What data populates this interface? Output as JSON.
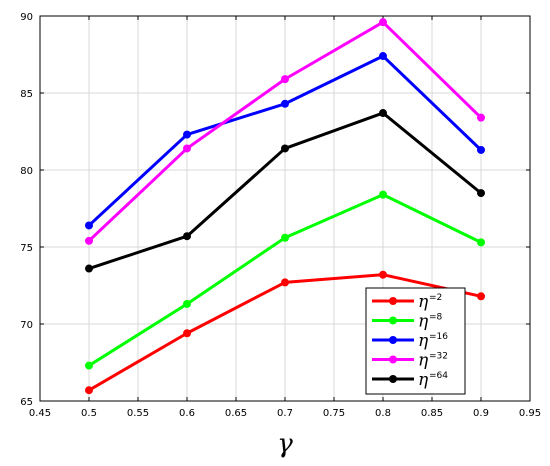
{
  "chart_data": {
    "type": "line",
    "title": "",
    "xlabel": "γ",
    "ylabel": "",
    "xlim": [
      0.45,
      0.95
    ],
    "ylim": [
      65,
      90
    ],
    "xticks": [
      "0.45",
      "0.5",
      "0.55",
      "0.6",
      "0.65",
      "0.7",
      "0.75",
      "0.8",
      "0.85",
      "0.9",
      "0.95"
    ],
    "yticks": [
      "65",
      "70",
      "75",
      "80",
      "85",
      "90"
    ],
    "grid": true,
    "legend_position": "bottom-right",
    "x": [
      0.5,
      0.6,
      0.7,
      0.8,
      0.9
    ],
    "series": [
      {
        "name_symbol": "η",
        "name_sub": "=2",
        "color": "#ff0000",
        "values": [
          65.7,
          69.4,
          72.7,
          73.2,
          71.8
        ]
      },
      {
        "name_symbol": "η",
        "name_sub": "=8",
        "color": "#00ff00",
        "values": [
          67.3,
          71.3,
          75.6,
          78.4,
          75.3
        ]
      },
      {
        "name_symbol": "η",
        "name_sub": "=16",
        "color": "#0000ff",
        "values": [
          76.4,
          82.3,
          84.3,
          87.4,
          81.3
        ]
      },
      {
        "name_symbol": "η",
        "name_sub": "=32",
        "color": "#ff00ff",
        "values": [
          75.4,
          81.4,
          85.9,
          89.6,
          83.4
        ]
      },
      {
        "name_symbol": "η",
        "name_sub": "=64",
        "color": "#000000",
        "values": [
          73.6,
          75.7,
          81.4,
          83.7,
          78.5
        ]
      }
    ]
  }
}
